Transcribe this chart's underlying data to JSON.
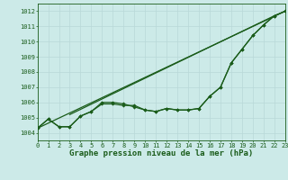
{
  "background_color": "#cceae8",
  "grid_color": "#ddeeee",
  "line_color": "#1a5c1a",
  "marker_color": "#1a5c1a",
  "title": "Graphe pression niveau de la mer (hPa)",
  "title_fontsize": 6.5,
  "x_ticks": [
    0,
    1,
    2,
    3,
    4,
    5,
    6,
    7,
    8,
    9,
    10,
    11,
    12,
    13,
    14,
    15,
    16,
    17,
    18,
    19,
    20,
    21,
    22,
    23
  ],
  "xlim": [
    0,
    23
  ],
  "ylim": [
    1003.5,
    1012.5
  ],
  "y_ticks": [
    1004,
    1005,
    1006,
    1007,
    1008,
    1009,
    1010,
    1011,
    1012
  ],
  "series": [
    {
      "x": [
        0,
        1,
        2,
        3,
        4,
        5,
        6,
        7,
        8,
        9,
        10,
        11,
        12,
        13,
        14,
        15,
        16,
        17,
        18,
        19,
        20,
        21,
        22,
        23
      ],
      "y": [
        1004.3,
        1004.9,
        1004.4,
        1004.4,
        1005.1,
        1005.4,
        1005.9,
        1005.9,
        1005.8,
        1005.8,
        1005.5,
        1005.4,
        1005.6,
        1005.5,
        1005.5,
        1005.6,
        1006.4,
        1007.0,
        1008.6,
        1009.5,
        1010.4,
        1011.1,
        1011.7,
        1012.0
      ],
      "markers": true,
      "linewidth": 0.9
    },
    {
      "x": [
        0,
        1,
        2,
        3,
        4,
        5,
        6,
        7,
        8,
        9,
        10,
        11,
        12,
        13,
        14,
        15,
        16,
        17,
        18,
        19,
        20,
        21,
        22,
        23
      ],
      "y": [
        1004.3,
        1004.9,
        1004.4,
        1004.4,
        1005.1,
        1005.4,
        1006.0,
        1006.0,
        1005.9,
        1005.7,
        1005.5,
        1005.4,
        1005.6,
        1005.5,
        1005.5,
        1005.6,
        1006.4,
        1007.0,
        1008.6,
        1009.5,
        1010.4,
        1011.1,
        1011.7,
        1012.0
      ],
      "markers": true,
      "linewidth": 0.9
    },
    {
      "x": [
        0,
        23
      ],
      "y": [
        1004.3,
        1012.0
      ],
      "markers": false,
      "linewidth": 0.9
    },
    {
      "x": [
        3,
        22
      ],
      "y": [
        1005.2,
        1011.7
      ],
      "markers": false,
      "linewidth": 0.9
    }
  ]
}
